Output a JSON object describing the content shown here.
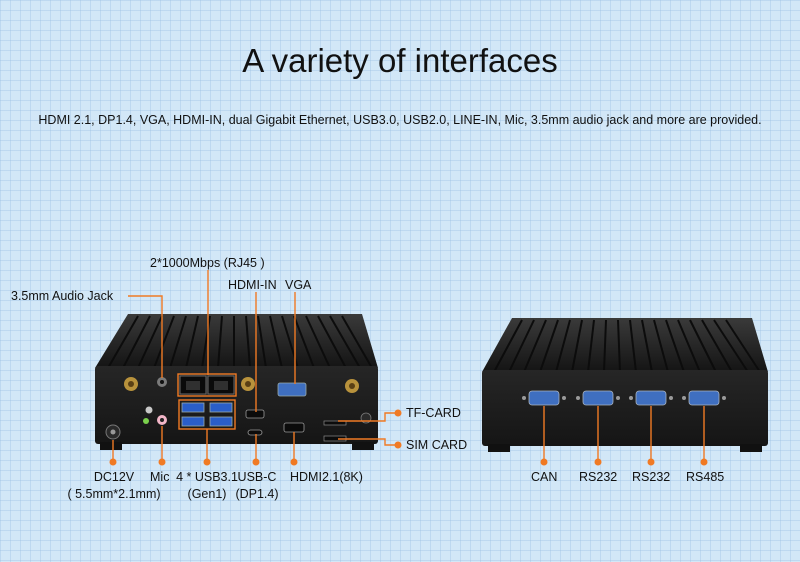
{
  "title": "A variety of interfaces",
  "subtitle": "HDMI 2.1, DP1.4, VGA, HDMI-IN, dual Gigabit Ethernet, USB3.0, USB2.0, LINE-IN, Mic, 3.5mm audio jack and more are provided.",
  "colors": {
    "accent": "#f07a24",
    "background": "#d2e7f7",
    "chassis": "#1c1c1c"
  },
  "front_labels": {
    "rj45": "2*1000Mbps (RJ45 )",
    "hdmi_in": "HDMI-IN",
    "vga": "VGA",
    "audio_jack": "3.5mm Audio Jack",
    "tf_card": "TF-CARD",
    "sim_card": "SIM CARD",
    "dc12v_line1": "DC12V",
    "dc12v_line2": "( 5.5mm*2.1mm)",
    "mic": "Mic",
    "usb31_line1": "4 * USB3.1",
    "usb31_line2": "(Gen1)",
    "usbc_line1": "USB-C",
    "usbc_line2": "(DP1.4)",
    "hdmi21": "HDMI2.1(8K)"
  },
  "rear_labels": {
    "can": "CAN",
    "rs232_a": "RS232",
    "rs232_b": "RS232",
    "rs485": "RS485"
  }
}
